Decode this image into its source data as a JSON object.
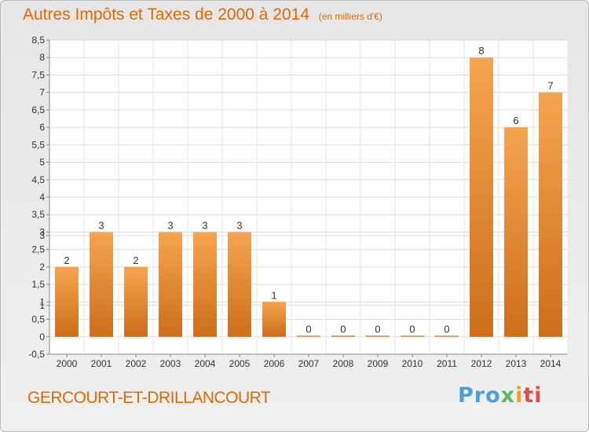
{
  "title": "Autres Impôts et Taxes de 2000 à 2014",
  "title_unit": "(en milliers d'€)",
  "place": "GERCOURT-ET-DRILLANCOURT",
  "logo": {
    "part1": "Pro",
    "part2": "x",
    "part3": "i",
    "part4": "ti"
  },
  "colors": {
    "title": "#e06a00",
    "bar_light": "#f6a44f",
    "bar_dark": "#cc6e1c"
  },
  "chart_data": {
    "type": "bar",
    "title": "Autres Impôts et Taxes de 2000 à 2014",
    "ylabel": "",
    "xlabel": "",
    "categories": [
      "2000",
      "2001",
      "2002",
      "2003",
      "2004",
      "2005",
      "2006",
      "2007",
      "2008",
      "2009",
      "2010",
      "2011",
      "2012",
      "2013",
      "2014"
    ],
    "values": [
      2,
      3,
      2,
      3,
      3,
      3,
      1,
      0,
      0,
      0,
      0,
      0,
      8,
      6,
      7
    ],
    "data_labels": [
      "2",
      "3",
      "2",
      "3",
      "3",
      "3",
      "1",
      "0",
      "0",
      "0",
      "0",
      "0",
      "8",
      "6",
      "7"
    ],
    "ylim": [
      -0.5,
      8.5
    ],
    "yticks": [
      "-0,5",
      "0",
      "0,5",
      "1",
      "1",
      "1,5",
      "2",
      "2,5",
      "3",
      "3",
      "3,5",
      "4",
      "4,5",
      "5",
      "5,5",
      "6",
      "6,5",
      "7",
      "7,5",
      "8",
      "8,5"
    ],
    "ytick_values": [
      -0.5,
      0,
      0.5,
      0.9,
      1,
      1.5,
      2,
      2.5,
      2.9,
      3,
      3.5,
      4,
      4.5,
      5,
      5.5,
      6,
      6.5,
      7,
      7.5,
      8,
      8.5
    ],
    "grid": true
  }
}
